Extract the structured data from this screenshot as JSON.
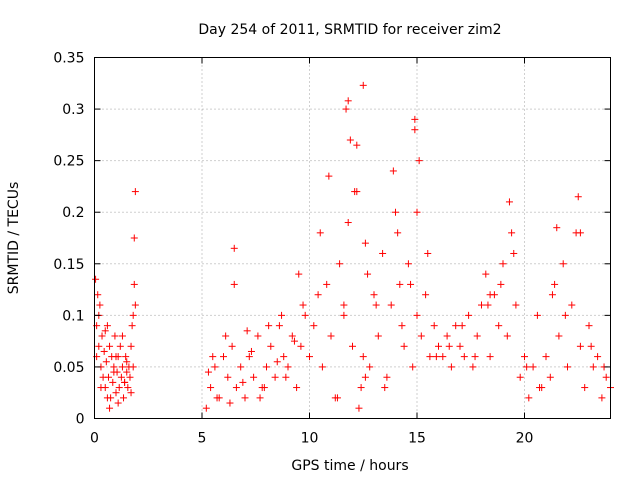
{
  "chart_data": {
    "type": "scatter",
    "title": "Day 254 of 2011, SRMTID for receiver zim2",
    "xlabel": "GPS time / hours",
    "ylabel": "SRMTID / TECUs",
    "xlim": [
      0,
      24
    ],
    "ylim": [
      0,
      0.35
    ],
    "xticks": [
      0,
      5,
      10,
      15,
      20
    ],
    "xtick_labels": [
      "0",
      "5",
      "10",
      "15",
      "20"
    ],
    "yticks": [
      0,
      0.05,
      0.1,
      0.15,
      0.2,
      0.25,
      0.3,
      0.35
    ],
    "ytick_labels": [
      "0",
      "0.05",
      "0.1",
      "0.15",
      "0.2",
      "0.25",
      "0.3",
      "0.35"
    ],
    "grid": true,
    "marker": "+",
    "color": "#ff0000",
    "series": [
      {
        "name": "SRMTID",
        "x": [
          0.05,
          0.1,
          0.15,
          0.2,
          0.25,
          0.3,
          0.35,
          0.4,
          0.45,
          0.5,
          0.55,
          0.6,
          0.65,
          0.7,
          0.75,
          0.8,
          0.85,
          0.9,
          0.95,
          1.0,
          1.05,
          1.1,
          1.15,
          1.2,
          1.25,
          1.3,
          1.35,
          1.4,
          1.45,
          1.5,
          1.55,
          1.6,
          1.65,
          1.7,
          1.75,
          1.8,
          1.85,
          1.9,
          1.85,
          1.9,
          0.1,
          0.3,
          0.5,
          0.7,
          0.9,
          1.1,
          1.3,
          1.5,
          1.7,
          0.2,
          0.6,
          1.0,
          1.4,
          1.8,
          5.2,
          5.4,
          5.6,
          5.8,
          6.0,
          6.2,
          6.4,
          6.5,
          6.6,
          6.8,
          7.0,
          7.2,
          7.4,
          7.6,
          7.8,
          8.0,
          8.2,
          8.4,
          8.6,
          8.8,
          9.0,
          9.2,
          9.4,
          9.6,
          9.8,
          10.0,
          5.3,
          5.7,
          6.1,
          6.5,
          6.9,
          7.3,
          7.7,
          8.1,
          8.5,
          8.9,
          9.3,
          9.7,
          5.5,
          6.3,
          7.1,
          7.9,
          8.7,
          9.5,
          10.2,
          10.4,
          10.6,
          10.8,
          11.0,
          11.2,
          11.4,
          11.6,
          11.8,
          12.0,
          12.2,
          12.4,
          12.6,
          12.8,
          13.0,
          13.2,
          13.4,
          13.6,
          13.8,
          14.0,
          14.2,
          14.4,
          14.6,
          14.8,
          15.0,
          15.2,
          15.4,
          15.6,
          15.8,
          16.0,
          10.5,
          10.9,
          11.3,
          11.7,
          11.9,
          12.1,
          12.3,
          12.5,
          12.7,
          13.1,
          13.5,
          13.9,
          14.1,
          14.3,
          14.7,
          14.9,
          15.1,
          15.5,
          15.9,
          11.8,
          12.2,
          12.5,
          14.9,
          15.0,
          12.6,
          11.6,
          16.2,
          16.4,
          16.6,
          16.8,
          17.0,
          17.2,
          17.4,
          17.6,
          17.8,
          18.0,
          18.2,
          18.4,
          18.6,
          18.8,
          19.0,
          19.2,
          19.4,
          19.6,
          19.8,
          20.0,
          20.2,
          20.4,
          20.6,
          20.8,
          21.0,
          21.2,
          21.4,
          21.6,
          21.8,
          22.0,
          22.2,
          22.4,
          22.6,
          22.8,
          23.0,
          23.2,
          23.4,
          23.6,
          23.8,
          24.0,
          16.5,
          17.1,
          17.7,
          18.3,
          18.9,
          19.5,
          20.1,
          20.7,
          21.3,
          21.9,
          22.5,
          23.1,
          23.7,
          19.3,
          22.6,
          21.5,
          18.4
        ],
        "y": [
          0.135,
          0.09,
          0.12,
          0.07,
          0.11,
          0.05,
          0.08,
          0.04,
          0.065,
          0.03,
          0.055,
          0.09,
          0.04,
          0.07,
          0.02,
          0.06,
          0.035,
          0.05,
          0.08,
          0.025,
          0.045,
          0.06,
          0.03,
          0.07,
          0.04,
          0.05,
          0.02,
          0.035,
          0.06,
          0.045,
          0.03,
          0.05,
          0.04,
          0.07,
          0.09,
          0.1,
          0.13,
          0.22,
          0.175,
          0.11,
          0.06,
          0.03,
          0.085,
          0.01,
          0.045,
          0.015,
          0.08,
          0.055,
          0.025,
          0.1,
          0.02,
          0.06,
          0.035,
          0.05,
          0.01,
          0.03,
          0.05,
          0.02,
          0.06,
          0.04,
          0.07,
          0.165,
          0.03,
          0.05,
          0.02,
          0.06,
          0.04,
          0.08,
          0.03,
          0.05,
          0.07,
          0.04,
          0.09,
          0.06,
          0.05,
          0.08,
          0.03,
          0.07,
          0.1,
          0.06,
          0.045,
          0.02,
          0.08,
          0.13,
          0.035,
          0.065,
          0.02,
          0.09,
          0.055,
          0.04,
          0.075,
          0.11,
          0.06,
          0.015,
          0.085,
          0.03,
          0.1,
          0.14,
          0.09,
          0.12,
          0.05,
          0.13,
          0.08,
          0.02,
          0.15,
          0.1,
          0.19,
          0.07,
          0.22,
          0.03,
          0.17,
          0.05,
          0.12,
          0.08,
          0.16,
          0.04,
          0.11,
          0.2,
          0.13,
          0.07,
          0.15,
          0.05,
          0.1,
          0.08,
          0.12,
          0.06,
          0.09,
          0.07,
          0.18,
          0.235,
          0.02,
          0.3,
          0.27,
          0.22,
          0.01,
          0.06,
          0.14,
          0.11,
          0.03,
          0.24,
          0.18,
          0.09,
          0.13,
          0.29,
          0.25,
          0.16,
          0.06,
          0.308,
          0.265,
          0.323,
          0.28,
          0.2,
          0.04,
          0.11,
          0.06,
          0.08,
          0.05,
          0.09,
          0.07,
          0.06,
          0.1,
          0.05,
          0.08,
          0.11,
          0.14,
          0.06,
          0.12,
          0.09,
          0.15,
          0.08,
          0.18,
          0.11,
          0.04,
          0.06,
          0.02,
          0.05,
          0.1,
          0.03,
          0.06,
          0.04,
          0.13,
          0.08,
          0.15,
          0.05,
          0.11,
          0.18,
          0.07,
          0.03,
          0.09,
          0.05,
          0.06,
          0.02,
          0.04,
          0.03,
          0.07,
          0.09,
          0.06,
          0.11,
          0.13,
          0.16,
          0.05,
          0.03,
          0.12,
          0.1,
          0.215,
          0.07,
          0.05,
          0.21,
          0.18,
          0.185,
          0.12
        ]
      }
    ]
  }
}
